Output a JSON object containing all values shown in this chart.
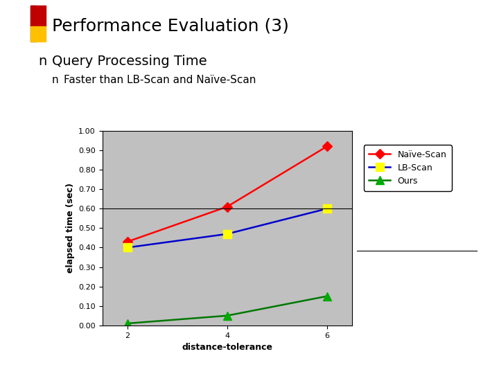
{
  "title": "Performance Evaluation (3)",
  "bullet_main": "Query Processing Time",
  "bullet_sub": "Faster than LB-Scan and Naïve-Scan",
  "x": [
    2,
    4,
    6
  ],
  "naive_scan": [
    0.43,
    0.61,
    0.92
  ],
  "lb_scan": [
    0.4,
    0.47,
    0.6
  ],
  "ours": [
    0.01,
    0.05,
    0.15
  ],
  "xlabel": "distance-tolerance",
  "ylabel": "elapsed time (sec)",
  "ylim": [
    0.0,
    1.0
  ],
  "yticks": [
    0.0,
    0.1,
    0.2,
    0.3,
    0.4,
    0.5,
    0.6,
    0.7,
    0.8,
    0.9,
    1.0
  ],
  "xticks": [
    2,
    4,
    6
  ],
  "naive_color": "#FF0000",
  "lb_color": "#0000CC",
  "ours_color": "#007700",
  "lb_marker_color": "#FFFF00",
  "naive_marker_color": "#FF0000",
  "ours_marker_color": "#00AA00",
  "bg_color": "#C0C0C0",
  "title_fontsize": 18,
  "bullet_main_fontsize": 14,
  "bullet_sub_fontsize": 11,
  "label_fontsize": 9,
  "tick_fontsize": 8,
  "legend_fontsize": 9,
  "deco_blue": "#1F3864",
  "deco_red": "#C00000",
  "deco_orange": "#FFC000"
}
